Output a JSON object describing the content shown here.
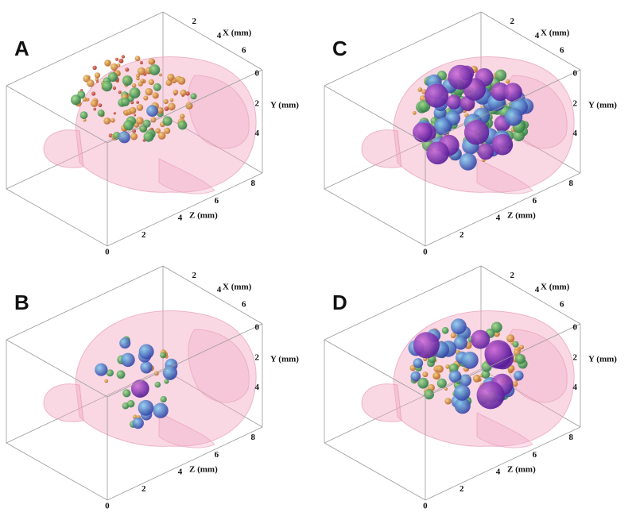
{
  "panels": [
    {
      "label": "A",
      "x_axis": {
        "title": "X (mm)",
        "ticks": [
          "2",
          "4",
          "6"
        ]
      },
      "y_axis": {
        "title": "Y (mm)",
        "ticks": [
          "0",
          "2",
          "4"
        ]
      },
      "z_axis": {
        "title": "Z (mm)",
        "ticks": [
          "0",
          "2",
          "4",
          "6",
          "8"
        ]
      }
    },
    {
      "label": "B",
      "x_axis": {
        "title": "X (mm)",
        "ticks": [
          "2",
          "4",
          "6"
        ]
      },
      "y_axis": {
        "title": "Y (mm)",
        "ticks": [
          "0",
          "2",
          "4"
        ]
      },
      "z_axis": {
        "title": "Z (mm)",
        "ticks": [
          "0",
          "2",
          "4",
          "6",
          "8"
        ]
      }
    },
    {
      "label": "C",
      "x_axis": {
        "title": "X (mm)",
        "ticks": [
          "2",
          "4",
          "6"
        ]
      },
      "y_axis": {
        "title": "Y (mm)",
        "ticks": [
          "0",
          "2",
          "4"
        ]
      },
      "z_axis": {
        "title": "Z (mm)",
        "ticks": [
          "0",
          "2",
          "4",
          "6",
          "8"
        ]
      }
    },
    {
      "label": "D",
      "x_axis": {
        "title": "X (mm)",
        "ticks": [
          "2",
          "4",
          "6"
        ]
      },
      "y_axis": {
        "title": "Y (mm)",
        "ticks": [
          "0",
          "2",
          "4"
        ]
      },
      "z_axis": {
        "title": "Z (mm)",
        "ticks": [
          "0",
          "2",
          "4",
          "6",
          "8"
        ]
      }
    }
  ]
}
